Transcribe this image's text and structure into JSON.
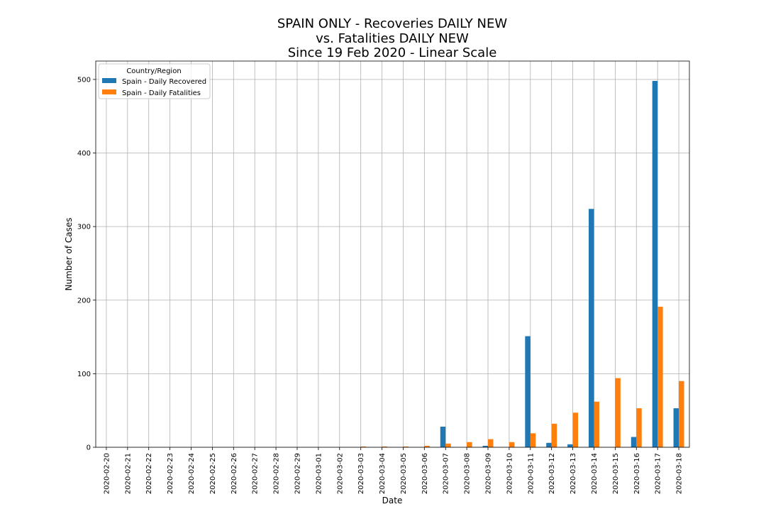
{
  "chart_data": {
    "type": "bar",
    "title_lines": [
      "SPAIN ONLY - Recoveries DAILY NEW",
      "vs. Fatalities DAILY NEW",
      "Since 19 Feb 2020 - Linear Scale"
    ],
    "xlabel": "Date",
    "ylabel": "Number of Cases",
    "ylim": [
      0,
      525
    ],
    "yticks": [
      0,
      100,
      200,
      300,
      400,
      500
    ],
    "grid": true,
    "legend": {
      "title": "Country/Region",
      "placement": "top-left"
    },
    "categories": [
      "2020-02-20",
      "2020-02-21",
      "2020-02-22",
      "2020-02-23",
      "2020-02-24",
      "2020-02-25",
      "2020-02-26",
      "2020-02-27",
      "2020-02-28",
      "2020-02-29",
      "2020-03-01",
      "2020-03-02",
      "2020-03-03",
      "2020-03-04",
      "2020-03-05",
      "2020-03-06",
      "2020-03-07",
      "2020-03-08",
      "2020-03-09",
      "2020-03-10",
      "2020-03-11",
      "2020-03-12",
      "2020-03-13",
      "2020-03-14",
      "2020-03-15",
      "2020-03-16",
      "2020-03-17",
      "2020-03-18"
    ],
    "series": [
      {
        "name": "Spain - Daily Recovered",
        "color": "#1f77b4",
        "values": [
          0,
          0,
          0,
          0,
          0,
          0,
          0,
          0,
          0,
          0,
          0,
          0,
          0,
          0,
          0,
          0,
          28,
          0,
          2,
          0,
          151,
          6,
          4,
          324,
          0,
          14,
          498,
          53
        ]
      },
      {
        "name": "Spain - Daily Fatalities",
        "color": "#ff7f0e",
        "values": [
          0,
          0,
          0,
          0,
          0,
          0,
          0,
          0,
          0,
          0,
          0,
          0,
          1,
          1,
          1,
          2,
          5,
          7,
          11,
          7,
          19,
          32,
          47,
          62,
          94,
          53,
          191,
          90
        ]
      }
    ]
  }
}
